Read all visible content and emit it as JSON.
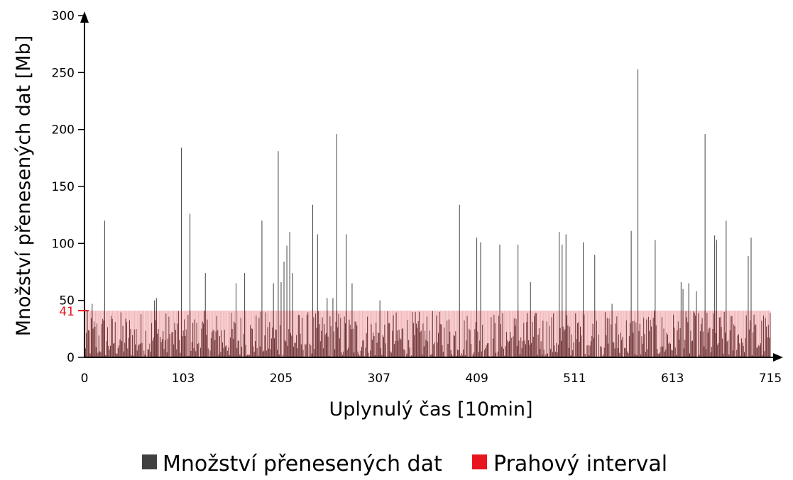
{
  "chart_data": {
    "type": "bar",
    "xlabel": "Uplynulý čas [10min]",
    "ylabel": "Množství přenesených dat [Mb]",
    "xlim": [
      0,
      715
    ],
    "ylim": [
      0,
      300
    ],
    "x_ticks": [
      "0",
      "103",
      "205",
      "307",
      "409",
      "511",
      "613",
      "715"
    ],
    "y_ticks": [
      "0",
      "50",
      "100",
      "150",
      "200",
      "250",
      "300"
    ],
    "threshold": {
      "value": 41,
      "label": "41",
      "name": "Prahový interval",
      "color": "#e8141e"
    },
    "series": [
      {
        "name": "Množství přenesených dat",
        "color": "#404040",
        "spikes": [
          [
            8,
            47
          ],
          [
            21,
            120
          ],
          [
            73,
            50
          ],
          [
            75,
            52
          ],
          [
            101,
            184
          ],
          [
            110,
            126
          ],
          [
            126,
            74
          ],
          [
            158,
            65
          ],
          [
            167,
            74
          ],
          [
            185,
            120
          ],
          [
            197,
            65
          ],
          [
            202,
            181
          ],
          [
            205,
            66
          ],
          [
            208,
            84
          ],
          [
            211,
            98
          ],
          [
            214,
            110
          ],
          [
            217,
            74
          ],
          [
            238,
            134
          ],
          [
            243,
            108
          ],
          [
            253,
            52
          ],
          [
            259,
            52
          ],
          [
            263,
            196
          ],
          [
            273,
            108
          ],
          [
            279,
            65
          ],
          [
            308,
            50
          ],
          [
            391,
            134
          ],
          [
            409,
            105
          ],
          [
            413,
            101
          ],
          [
            433,
            99
          ],
          [
            452,
            99
          ],
          [
            465,
            66
          ],
          [
            495,
            110
          ],
          [
            498,
            99
          ],
          [
            502,
            108
          ],
          [
            520,
            101
          ],
          [
            532,
            90
          ],
          [
            550,
            47
          ],
          [
            570,
            111
          ],
          [
            577,
            253
          ],
          [
            595,
            103
          ],
          [
            622,
            66
          ],
          [
            624,
            60
          ],
          [
            630,
            65
          ],
          [
            638,
            58
          ],
          [
            647,
            196
          ],
          [
            657,
            107
          ],
          [
            659,
            103
          ],
          [
            669,
            120
          ],
          [
            692,
            89
          ],
          [
            695,
            105
          ]
        ],
        "base_max": 41
      }
    ],
    "legend": [
      "Množství přenesených dat",
      "Prahový interval"
    ],
    "legend_position": "bottom"
  }
}
